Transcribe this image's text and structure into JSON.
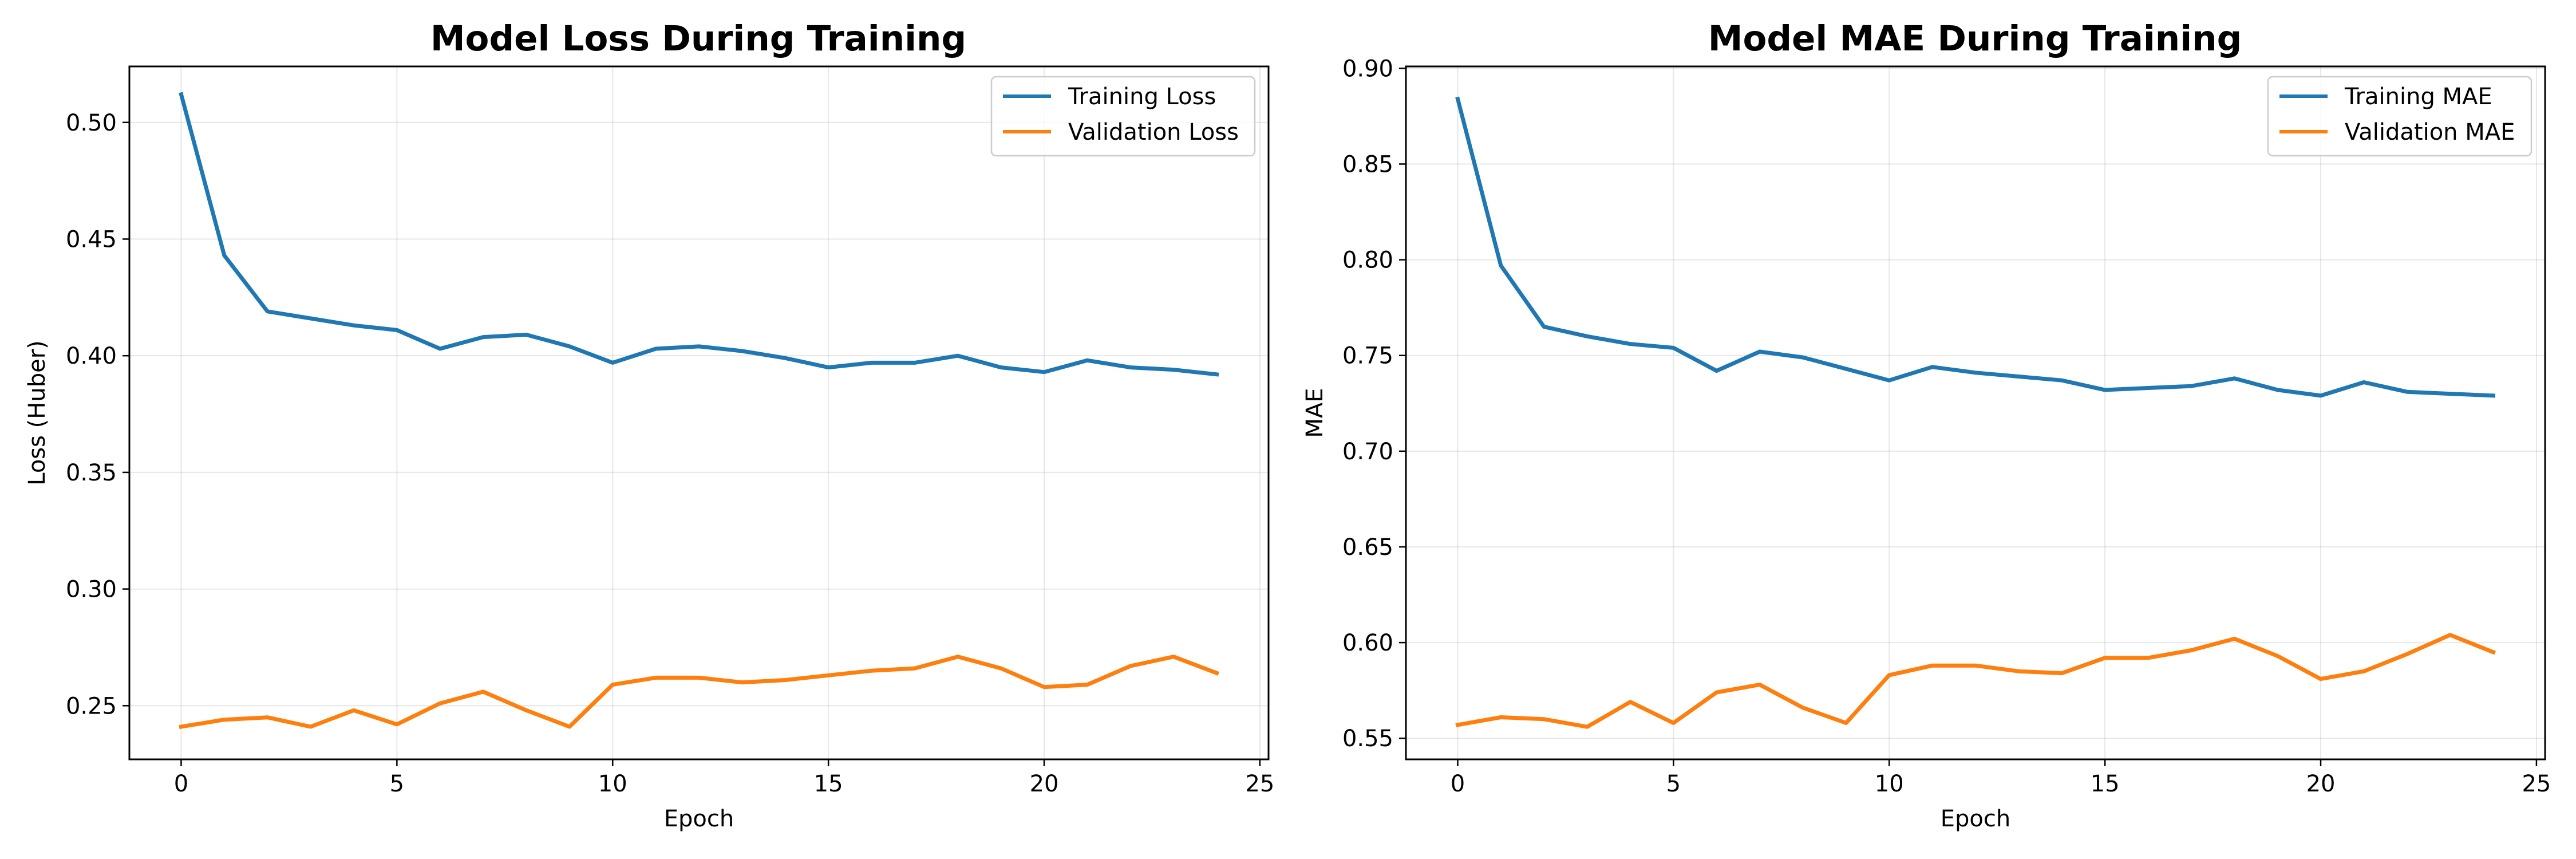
{
  "chart_data": [
    {
      "type": "line",
      "title": "Model Loss During Training",
      "xlabel": "Epoch",
      "ylabel": "Loss (Huber)",
      "xlim": [
        -1.2,
        25.2
      ],
      "ylim": [
        0.227,
        0.524
      ],
      "xticks": [
        0,
        5,
        10,
        15,
        20,
        25
      ],
      "yticks": [
        0.25,
        0.3,
        0.35,
        0.4,
        0.45,
        0.5
      ],
      "ytick_labels": [
        "0.25",
        "0.30",
        "0.35",
        "0.40",
        "0.45",
        "0.50"
      ],
      "grid": true,
      "legend_position": "top-right",
      "x": [
        0,
        1,
        2,
        3,
        4,
        5,
        6,
        7,
        8,
        9,
        10,
        11,
        12,
        13,
        14,
        15,
        16,
        17,
        18,
        19,
        20,
        21,
        22,
        23,
        24
      ],
      "series": [
        {
          "name": "Training Loss",
          "color": "#1f77b4",
          "values": [
            0.512,
            0.443,
            0.419,
            0.416,
            0.413,
            0.411,
            0.403,
            0.408,
            0.409,
            0.404,
            0.397,
            0.403,
            0.404,
            0.402,
            0.399,
            0.395,
            0.397,
            0.397,
            0.4,
            0.395,
            0.393,
            0.398,
            0.395,
            0.394,
            0.392
          ]
        },
        {
          "name": "Validation Loss",
          "color": "#ff7f0e",
          "values": [
            0.241,
            0.244,
            0.245,
            0.241,
            0.248,
            0.242,
            0.251,
            0.256,
            0.248,
            0.241,
            0.259,
            0.262,
            0.262,
            0.26,
            0.261,
            0.263,
            0.265,
            0.266,
            0.271,
            0.266,
            0.258,
            0.259,
            0.267,
            0.271,
            0.264
          ]
        }
      ]
    },
    {
      "type": "line",
      "title": "Model MAE During Training",
      "xlabel": "Epoch",
      "ylabel": "MAE",
      "xlim": [
        -1.2,
        25.2
      ],
      "ylim": [
        0.539,
        0.901
      ],
      "xticks": [
        0,
        5,
        10,
        15,
        20,
        25
      ],
      "yticks": [
        0.55,
        0.6,
        0.65,
        0.7,
        0.75,
        0.8,
        0.85,
        0.9
      ],
      "ytick_labels": [
        "0.55",
        "0.60",
        "0.65",
        "0.70",
        "0.75",
        "0.80",
        "0.85",
        "0.90"
      ],
      "grid": true,
      "legend_position": "top-right",
      "x": [
        0,
        1,
        2,
        3,
        4,
        5,
        6,
        7,
        8,
        9,
        10,
        11,
        12,
        13,
        14,
        15,
        16,
        17,
        18,
        19,
        20,
        21,
        22,
        23,
        24
      ],
      "series": [
        {
          "name": "Training MAE",
          "color": "#1f77b4",
          "values": [
            0.884,
            0.797,
            0.765,
            0.76,
            0.756,
            0.754,
            0.742,
            0.752,
            0.749,
            0.743,
            0.737,
            0.744,
            0.741,
            0.739,
            0.737,
            0.732,
            0.733,
            0.734,
            0.738,
            0.732,
            0.729,
            0.736,
            0.731,
            0.73,
            0.729
          ]
        },
        {
          "name": "Validation MAE",
          "color": "#ff7f0e",
          "values": [
            0.557,
            0.561,
            0.56,
            0.556,
            0.569,
            0.558,
            0.574,
            0.578,
            0.566,
            0.558,
            0.583,
            0.588,
            0.588,
            0.585,
            0.584,
            0.592,
            0.592,
            0.596,
            0.602,
            0.593,
            0.581,
            0.585,
            0.594,
            0.604,
            0.595
          ]
        }
      ]
    }
  ]
}
